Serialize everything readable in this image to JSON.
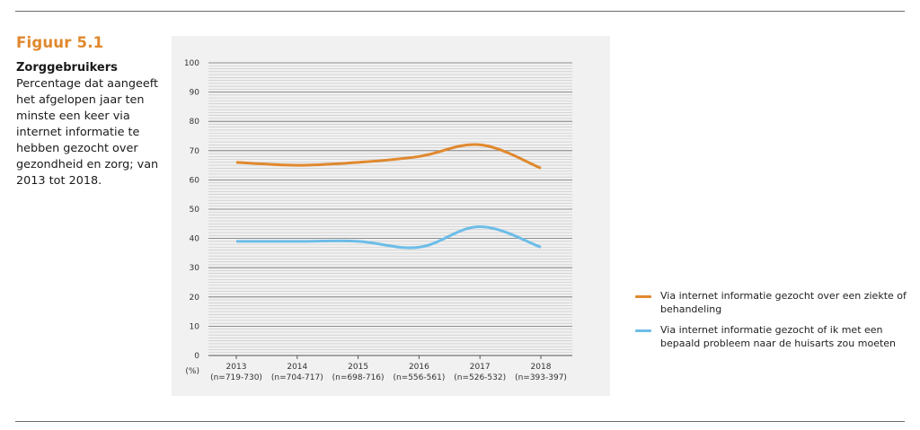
{
  "caption": {
    "figure_label": "Figuur 5.1",
    "title": "Zorggebruikers",
    "description": "Percentage dat aangeeft het afgelopen jaar ten minste een keer via internet informatie te hebben gezocht over gezondheid en zorg; van 2013 tot 2018."
  },
  "chart_data": {
    "type": "line",
    "x": [
      "2013",
      "2014",
      "2015",
      "2016",
      "2017",
      "2018"
    ],
    "x_sublabels": [
      "(n=719-730)",
      "(n=704-717)",
      "(n=698-716)",
      "(n=556-561)",
      "(n=526-532)",
      "(n=393-397)"
    ],
    "ylabel": "(%)",
    "ylim": [
      0,
      100
    ],
    "yticks": [
      0,
      10,
      20,
      30,
      40,
      50,
      60,
      70,
      80,
      90,
      100
    ],
    "grid": true,
    "legend_position": "right",
    "series": [
      {
        "name": "Via internet informatie gezocht over een ziekte of behandeling",
        "color": "#e0882d",
        "values": [
          66,
          65,
          66,
          68,
          72,
          64
        ]
      },
      {
        "name": "Via internet informatie gezocht of ik met een bepaald probleem naar de huisarts zou moeten",
        "color": "#6cbde8",
        "values": [
          39,
          39,
          39,
          37,
          44,
          37
        ]
      }
    ]
  }
}
